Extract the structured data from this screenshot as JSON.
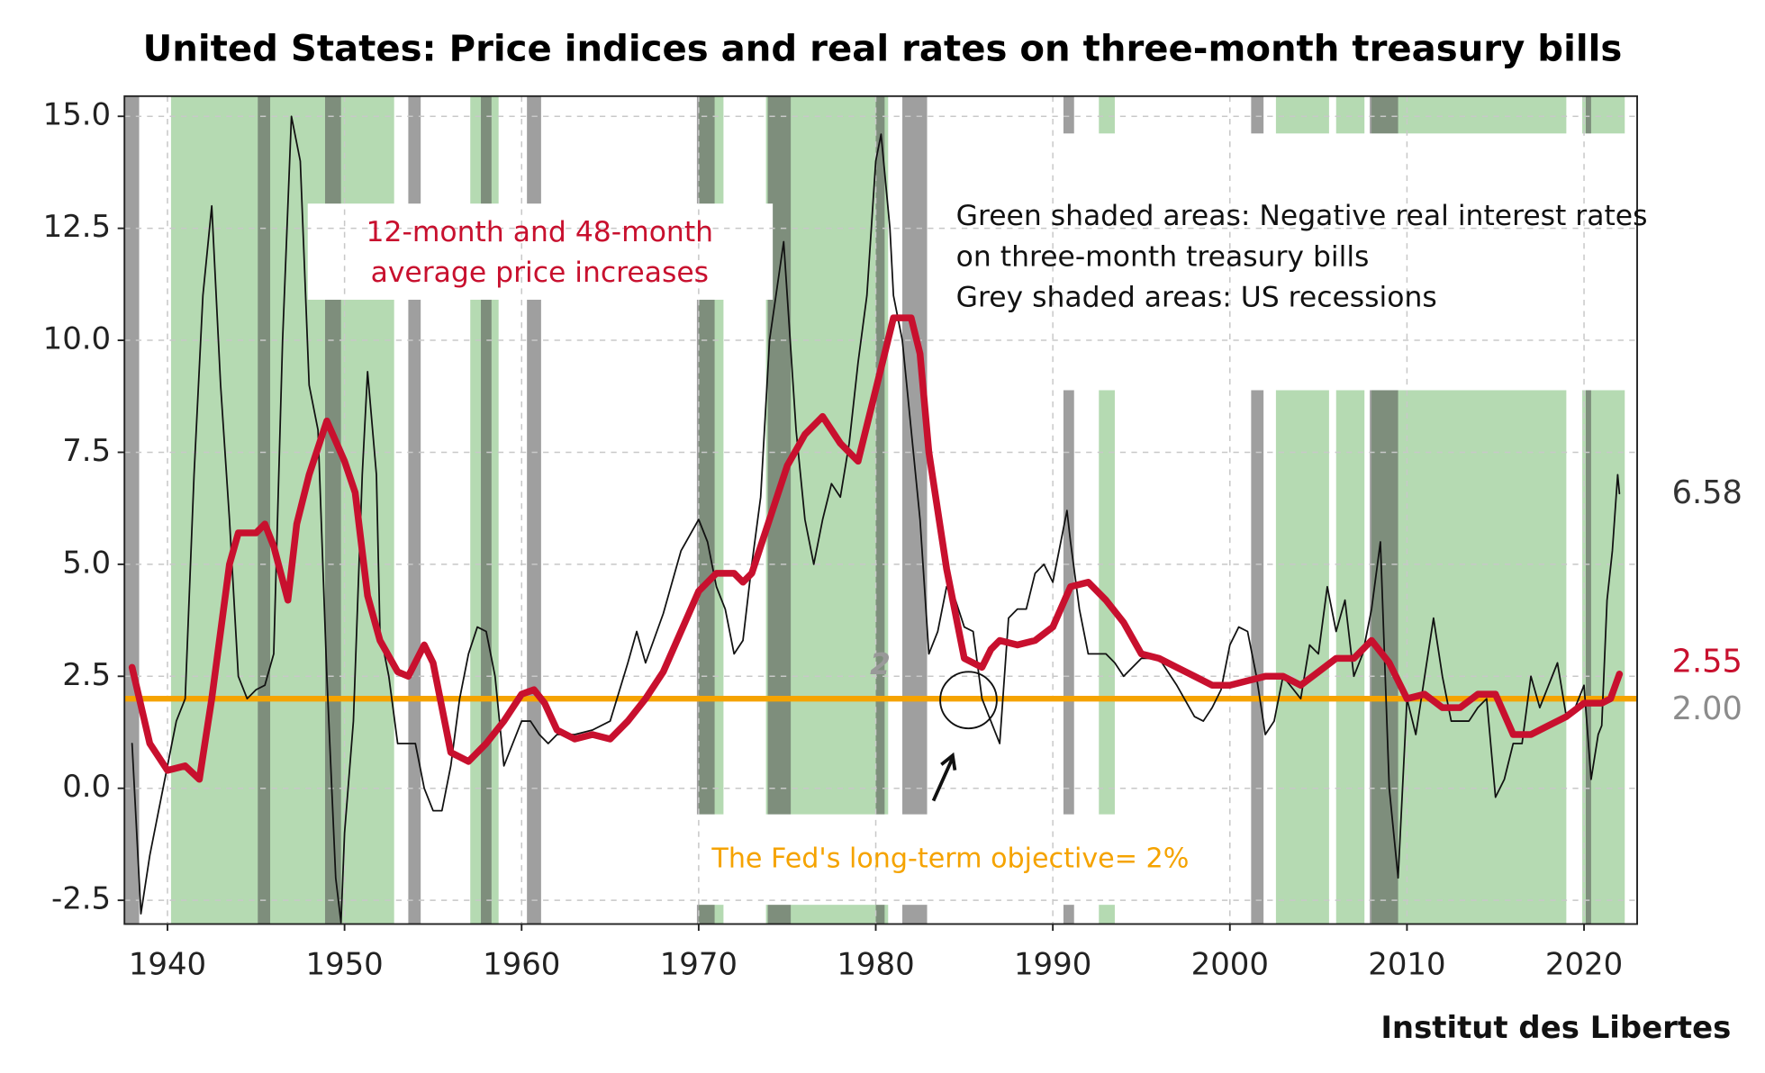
{
  "chart_data": {
    "type": "line",
    "title": "United States: Price indices and real rates on three-month treasury bills",
    "xlim": [
      1937.57,
      2023.0
    ],
    "xticks": [
      1940,
      1950,
      1960,
      1970,
      1980,
      1990,
      2000,
      2010,
      2020
    ],
    "ylim": [
      -3.03,
      15.45
    ],
    "yticks": [
      -2.5,
      {
        "value": 0,
        "label": "0.0"
      },
      2.5,
      {
        "value": 5,
        "label": "5.0"
      },
      7.5,
      {
        "value": 10,
        "label": "10.0"
      },
      12.5,
      {
        "value": 15,
        "label": "15.0"
      }
    ],
    "grid": true,
    "negative_real_rate_color": "#b5dab2",
    "negative_real_rate_periods": [
      [
        1940.2,
        1952.8
      ],
      [
        1957.1,
        1958.7
      ],
      [
        1970.0,
        1971.4
      ],
      [
        1973.8,
        1980.7
      ],
      [
        1992.6,
        1993.5
      ],
      [
        2002.6,
        2005.6
      ],
      [
        2006.0,
        2007.6
      ],
      [
        2008.0,
        2019.0
      ],
      [
        2019.9,
        2022.3
      ]
    ],
    "recession_color": "#505050",
    "recession_periods": [
      [
        1937.6,
        1938.4
      ],
      [
        1945.1,
        1945.8
      ],
      [
        1948.9,
        1949.8
      ],
      [
        1953.6,
        1954.3
      ],
      [
        1957.7,
        1958.3
      ],
      [
        1960.3,
        1961.1
      ],
      [
        1969.9,
        1970.9
      ],
      [
        1973.9,
        1975.2
      ],
      [
        1980.0,
        1980.5
      ],
      [
        1981.5,
        1982.9
      ],
      [
        1990.6,
        1991.2
      ],
      [
        2001.2,
        2001.9
      ],
      [
        2007.9,
        2009.5
      ],
      [
        2020.1,
        2020.4
      ]
    ],
    "series": [
      {
        "color": "#111111",
        "width": 1.4,
        "end_label": "6.58",
        "end_label_color": "#333333",
        "x": [
          1938,
          1938.5,
          1939,
          1939.5,
          1940,
          1940.5,
          1941,
          1941.5,
          1942,
          1942.5,
          1943,
          1943.5,
          1944,
          1944.5,
          1945,
          1945.5,
          1946,
          1946.5,
          1947,
          1947.5,
          1948,
          1948.5,
          1949,
          1949.5,
          1949.8,
          1950,
          1950.5,
          1951,
          1951.3,
          1951.8,
          1952,
          1952.5,
          1953,
          1953.5,
          1954,
          1954.5,
          1955,
          1955.5,
          1956,
          1956.5,
          1957,
          1957.5,
          1958,
          1958.5,
          1959,
          1959.5,
          1960,
          1960.5,
          1961,
          1961.5,
          1962,
          1963,
          1964,
          1965,
          1966,
          1966.5,
          1967,
          1968,
          1969,
          1970,
          1970.5,
          1971,
          1971.5,
          1972,
          1972.5,
          1973,
          1973.5,
          1974,
          1974.8,
          1975,
          1975.5,
          1976,
          1976.5,
          1977,
          1977.5,
          1978,
          1978.5,
          1979,
          1979.5,
          1980,
          1980.3,
          1980.8,
          1981,
          1981.5,
          1982,
          1982.5,
          1983,
          1983.5,
          1984,
          1984.5,
          1985,
          1985.5,
          1986,
          1986.5,
          1987,
          1987.5,
          1988,
          1988.5,
          1989,
          1989.5,
          1990,
          1990.8,
          1991,
          1991.5,
          1992,
          1992.5,
          1993,
          1993.5,
          1994,
          1995,
          1996,
          1997,
          1998,
          1998.5,
          1999,
          1999.5,
          2000,
          2000.5,
          2001,
          2001.5,
          2002,
          2002.5,
          2003,
          2004,
          2004.5,
          2005,
          2005.5,
          2006,
          2006.5,
          2007,
          2007.5,
          2008,
          2008.5,
          2009,
          2009.5,
          2010,
          2010.5,
          2011,
          2011.5,
          2012,
          2012.5,
          2013,
          2013.5,
          2014,
          2014.5,
          2015,
          2015.5,
          2016,
          2016.5,
          2017,
          2017.5,
          2018,
          2018.5,
          2019,
          2019.5,
          2020,
          2020.4,
          2020.8,
          2021,
          2021.3,
          2021.6,
          2021.9,
          2022
        ],
        "values": [
          1,
          -2.8,
          -1.5,
          -0.5,
          0.5,
          1.5,
          2,
          7,
          11,
          13,
          9,
          6,
          2.5,
          2,
          2.2,
          2.3,
          3,
          10,
          15,
          14,
          9,
          8,
          2.5,
          -2,
          -3,
          -1,
          1.5,
          7,
          9.3,
          7,
          3.5,
          2.5,
          1,
          1,
          1,
          0,
          -0.5,
          -0.5,
          0.5,
          2,
          3,
          3.6,
          3.5,
          2.5,
          0.5,
          1,
          1.5,
          1.5,
          1.2,
          1,
          1.2,
          1.2,
          1.3,
          1.5,
          2.8,
          3.5,
          2.8,
          3.9,
          5.3,
          6,
          5.5,
          4.5,
          4,
          3,
          3.3,
          5,
          6.5,
          10,
          12.2,
          11,
          8,
          6,
          5,
          6,
          6.8,
          6.5,
          7.7,
          9.5,
          11,
          14,
          14.6,
          12.5,
          11,
          10,
          8,
          6,
          3,
          3.5,
          4.5,
          4.2,
          3.6,
          3.5,
          2,
          1.5,
          1,
          3.8,
          4,
          4,
          4.8,
          5,
          4.6,
          6.2,
          5.5,
          4,
          3,
          3,
          3,
          2.8,
          2.5,
          2.9,
          2.9,
          2.3,
          1.6,
          1.5,
          1.8,
          2.2,
          3.2,
          3.6,
          3.5,
          2.5,
          1.2,
          1.5,
          2.5,
          2,
          3.2,
          3,
          4.5,
          3.5,
          4.2,
          2.5,
          3,
          4,
          5.5,
          0,
          -2,
          2,
          1.2,
          2.5,
          3.8,
          2.5,
          1.5,
          1.5,
          1.5,
          1.8,
          2,
          -0.2,
          0.2,
          1,
          1,
          2.5,
          1.8,
          2.3,
          2.8,
          1.6,
          1.8,
          2.3,
          0.2,
          1.2,
          1.4,
          4.2,
          5.3,
          7,
          6.58
        ]
      },
      {
        "color": "#c8102e",
        "width": 6,
        "end_label": "2.55",
        "end_label_color": "#c8102e",
        "x": [
          1938,
          1939,
          1940,
          1941,
          1941.8,
          1942.5,
          1943.5,
          1944,
          1945,
          1945.5,
          1946,
          1946.8,
          1947.3,
          1948,
          1949,
          1950,
          1950.6,
          1951.3,
          1952,
          1953,
          1953.6,
          1954.5,
          1955,
          1956,
          1957,
          1958,
          1959,
          1960,
          1960.7,
          1961.3,
          1962,
          1963,
          1964,
          1965,
          1966,
          1967,
          1968,
          1969,
          1970,
          1971,
          1972,
          1972.5,
          1973,
          1974,
          1975,
          1976,
          1977,
          1978,
          1979,
          1980,
          1981,
          1982,
          1982.5,
          1983,
          1984,
          1985,
          1986,
          1986.5,
          1987,
          1988,
          1989,
          1990,
          1991,
          1992,
          1993,
          1994,
          1995,
          1996,
          1997,
          1998,
          1999,
          2000,
          2001,
          2002,
          2003,
          2004,
          2005,
          2006,
          2007,
          2008,
          2009,
          2010,
          2011,
          2012,
          2013,
          2014,
          2015,
          2016,
          2017,
          2018,
          2019,
          2020,
          2021,
          2021.5,
          2022
        ],
        "values": [
          2.7,
          1,
          0.4,
          0.5,
          0.2,
          2,
          5,
          5.7,
          5.7,
          5.9,
          5.4,
          4.2,
          5.9,
          7,
          8.2,
          7.3,
          6.6,
          4.3,
          3.3,
          2.6,
          2.5,
          3.2,
          2.8,
          0.8,
          0.6,
          1,
          1.5,
          2.1,
          2.2,
          1.9,
          1.3,
          1.1,
          1.2,
          1.1,
          1.5,
          2,
          2.6,
          3.5,
          4.4,
          4.8,
          4.8,
          4.6,
          4.8,
          6,
          7.2,
          7.9,
          8.3,
          7.7,
          7.3,
          8.9,
          10.5,
          10.5,
          9.7,
          7.5,
          4.9,
          2.9,
          2.7,
          3.1,
          3.3,
          3.2,
          3.3,
          3.6,
          4.5,
          4.6,
          4.2,
          3.7,
          3,
          2.9,
          2.7,
          2.5,
          2.3,
          2.3,
          2.4,
          2.5,
          2.5,
          2.3,
          2.6,
          2.9,
          2.9,
          3.3,
          2.8,
          2,
          2.1,
          1.8,
          1.8,
          2.1,
          2.1,
          1.2,
          1.2,
          1.4,
          1.6,
          1.9,
          1.9,
          2,
          2.55
        ]
      }
    ],
    "reference_line": {
      "value": 2,
      "label": "2.00",
      "color": "#f5a300",
      "label_color": "#8c8c8c",
      "text": "The Fed's long-term objective= 2%"
    },
    "series_annotation": [
      "12-month and 48-month",
      "average price increases"
    ],
    "notes": [
      "Green shaded areas: Negative real interest rates",
      "on three-month treasury bills",
      "Grey shaded areas: US recessions"
    ],
    "point_annotation": "2",
    "source": "Institut des Libertes"
  }
}
